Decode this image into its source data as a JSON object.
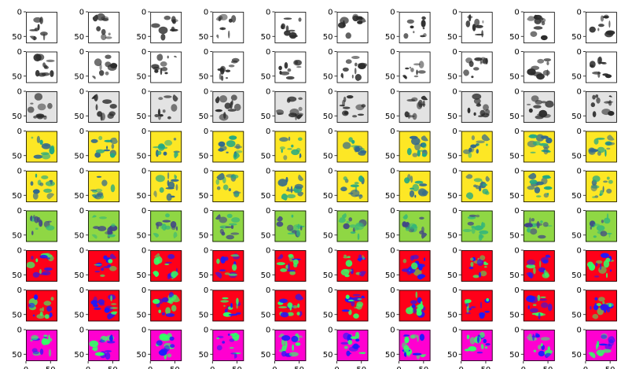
{
  "chart_data": {
    "type": "heatmap",
    "layout": {
      "rows": 9,
      "cols": 10
    },
    "axis": {
      "xlim": [
        0,
        64
      ],
      "ylim": [
        64,
        0
      ],
      "xticks": [
        0,
        50
      ],
      "yticks": [
        0,
        50
      ]
    },
    "row_colormaps": [
      {
        "kind": "gray",
        "background": "#ffffff",
        "colors": [
          "#ffffff",
          "#2b2b2b"
        ]
      },
      {
        "kind": "gray",
        "background": "#ffffff",
        "colors": [
          "#ffffff",
          "#2b2b2b"
        ]
      },
      {
        "kind": "gray-smooth",
        "background": "#e3e3e3",
        "colors": [
          "#eeeeee",
          "#2b2b2b"
        ]
      },
      {
        "kind": "viridis",
        "background": "#fde725",
        "colors": [
          "#fde725",
          "#22a884",
          "#31688e"
        ]
      },
      {
        "kind": "viridis",
        "background": "#fde725",
        "colors": [
          "#fde725",
          "#22a884",
          "#31688e"
        ]
      },
      {
        "kind": "viridis-smooth",
        "background": "#8fd744",
        "colors": [
          "#c0df25",
          "#35b779",
          "#414487"
        ]
      },
      {
        "kind": "hsv",
        "background": "#ff0019",
        "colors": [
          "#ff0019",
          "#33ff66",
          "#1a1aff"
        ]
      },
      {
        "kind": "hsv",
        "background": "#ff0019",
        "colors": [
          "#ff0019",
          "#33ff66",
          "#1a1aff"
        ]
      },
      {
        "kind": "hsv-magenta",
        "background": "#ff00d0",
        "colors": [
          "#ff00d0",
          "#33ff66",
          "#1a1aff"
        ]
      }
    ]
  }
}
